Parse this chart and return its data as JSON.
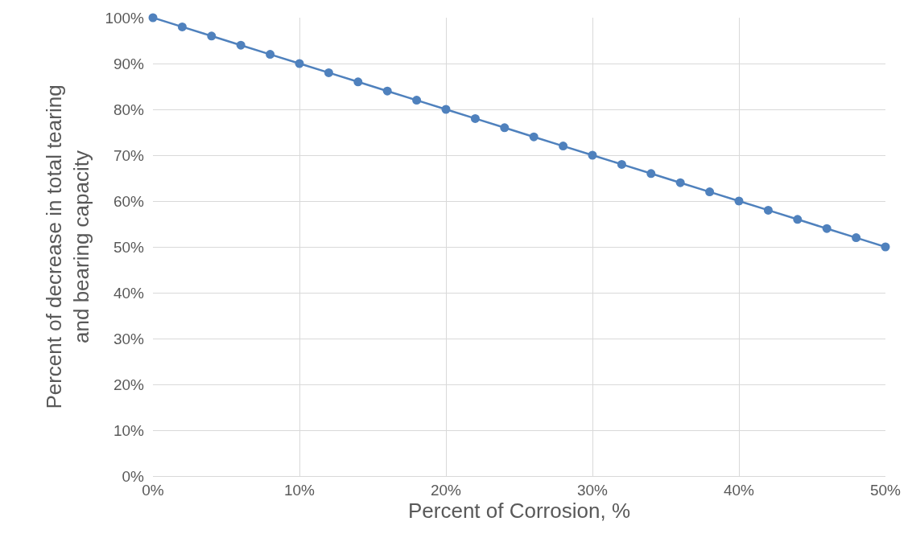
{
  "chart_data": {
    "type": "line",
    "xlabel": "Percent of Corrosion, %",
    "ylabel": "Percent of decrease in total tearing\nand bearing capacity",
    "x": [
      0,
      2,
      4,
      6,
      8,
      10,
      12,
      14,
      16,
      18,
      20,
      22,
      24,
      26,
      28,
      30,
      32,
      34,
      36,
      38,
      40,
      42,
      44,
      46,
      48,
      50
    ],
    "series": [
      {
        "color": "#4f81bd",
        "values": [
          100,
          98,
          96,
          94,
          92,
          90,
          88,
          86,
          84,
          82,
          80,
          78,
          76,
          74,
          72,
          70,
          68,
          66,
          64,
          62,
          60,
          58,
          56,
          54,
          52,
          50
        ]
      }
    ],
    "xlim": [
      0,
      50
    ],
    "xticks": [
      {
        "value": 0,
        "label": "0%"
      },
      {
        "value": 10,
        "label": "10%"
      },
      {
        "value": 20,
        "label": "20%"
      },
      {
        "value": 30,
        "label": "30%"
      },
      {
        "value": 40,
        "label": "40%"
      },
      {
        "value": 50,
        "label": "50%"
      }
    ],
    "ylim": [
      0,
      100
    ],
    "yticks": [
      {
        "value": 0,
        "label": "0%"
      },
      {
        "value": 10,
        "label": "10%"
      },
      {
        "value": 20,
        "label": "20%"
      },
      {
        "value": 30,
        "label": "30%"
      },
      {
        "value": 40,
        "label": "40%"
      },
      {
        "value": 50,
        "label": "50%"
      },
      {
        "value": 60,
        "label": "60%"
      },
      {
        "value": 70,
        "label": "70%"
      },
      {
        "value": 80,
        "label": "80%"
      },
      {
        "value": 90,
        "label": "90%"
      },
      {
        "value": 100,
        "label": "100%"
      }
    ],
    "grid": true,
    "marker": "circle",
    "line_style": "solid"
  }
}
